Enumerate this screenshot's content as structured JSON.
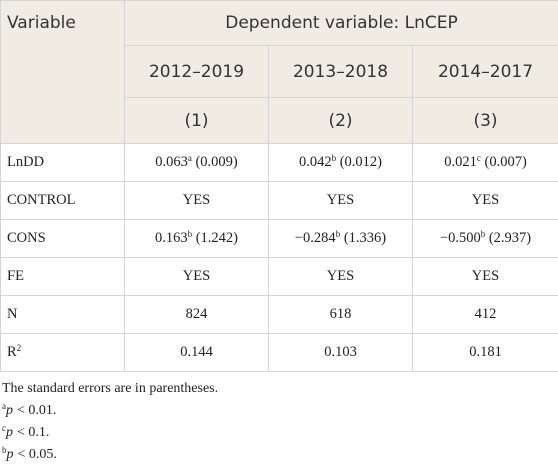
{
  "table": {
    "header": {
      "variable": "Variable",
      "group": "Dependent variable: LnCEP",
      "periods": [
        "2012–2019",
        "2013–2018",
        "2014–2017"
      ],
      "models": [
        "(1)",
        "(2)",
        "(3)"
      ]
    },
    "rows": [
      {
        "label": "LnDD",
        "cells": [
          {
            "value": "0.063",
            "sup": "a",
            "se": "(0.009)"
          },
          {
            "value": "0.042",
            "sup": "b",
            "se": "(0.012)"
          },
          {
            "value": "0.021",
            "sup": "c",
            "se": "(0.007)"
          }
        ]
      },
      {
        "label": "CONTROL",
        "cells": [
          {
            "value": "YES"
          },
          {
            "value": "YES"
          },
          {
            "value": "YES"
          }
        ]
      },
      {
        "label": "CONS",
        "cells": [
          {
            "value": "0.163",
            "sup": "b",
            "se": "(1.242)"
          },
          {
            "value": "−0.284",
            "sup": "b",
            "se": "(1.336)"
          },
          {
            "value": "−0.500",
            "sup": "b",
            "se": "(2.937)"
          }
        ]
      },
      {
        "label": "FE",
        "cells": [
          {
            "value": "YES"
          },
          {
            "value": "YES"
          },
          {
            "value": "YES"
          }
        ]
      },
      {
        "label": "N",
        "cells": [
          {
            "value": "824"
          },
          {
            "value": "618"
          },
          {
            "value": "412"
          }
        ]
      },
      {
        "label": "R",
        "label_sup": "2",
        "cells": [
          {
            "value": "0.144"
          },
          {
            "value": "0.103"
          },
          {
            "value": "0.181"
          }
        ]
      }
    ]
  },
  "notes": {
    "main": "The standard errors are in parentheses.",
    "items": [
      {
        "sup": "a",
        "var": "p",
        "text": "< 0.01."
      },
      {
        "sup": "c",
        "var": "p",
        "text": "< 0.1."
      },
      {
        "sup": "b",
        "var": "p",
        "text": "< 0.05."
      }
    ]
  }
}
